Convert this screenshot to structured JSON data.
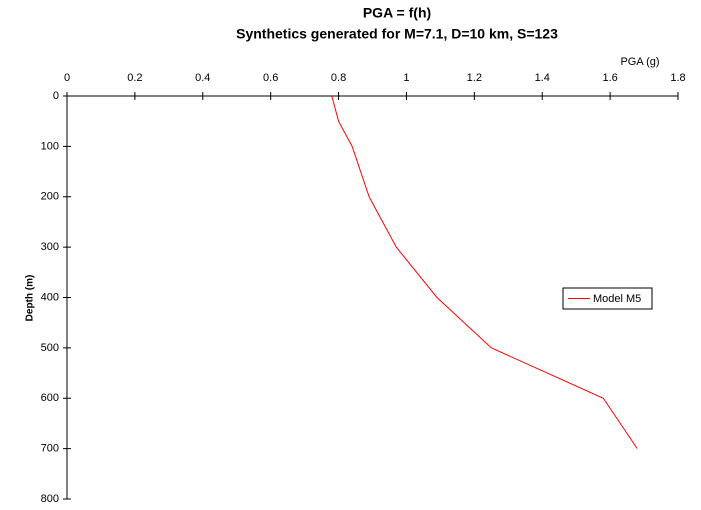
{
  "chart_data": {
    "type": "line",
    "title": "PGA = f(h)",
    "subtitle": "Synthetics generated for M=7.1, D=10 km, S=123",
    "x_label": "PGA (g)",
    "y_label": "Depth (m)",
    "x_axis_position": "top",
    "y_inverted": true,
    "xlim": [
      0,
      1.8
    ],
    "xticks": [
      0,
      0.2,
      0.4,
      0.6,
      0.8,
      1,
      1.2,
      1.4,
      1.6,
      1.8
    ],
    "ylim": [
      0,
      800
    ],
    "yticks": [
      0,
      100,
      200,
      300,
      400,
      500,
      600,
      700,
      800
    ],
    "legend_position": "right",
    "series": [
      {
        "name": "Model M5",
        "color": "#ff0000",
        "x": [
          0.78,
          0.8,
          0.84,
          0.89,
          0.97,
          1.09,
          1.25,
          1.58,
          1.68
        ],
        "values": [
          0,
          50,
          100,
          200,
          300,
          400,
          500,
          600,
          700
        ]
      }
    ]
  }
}
